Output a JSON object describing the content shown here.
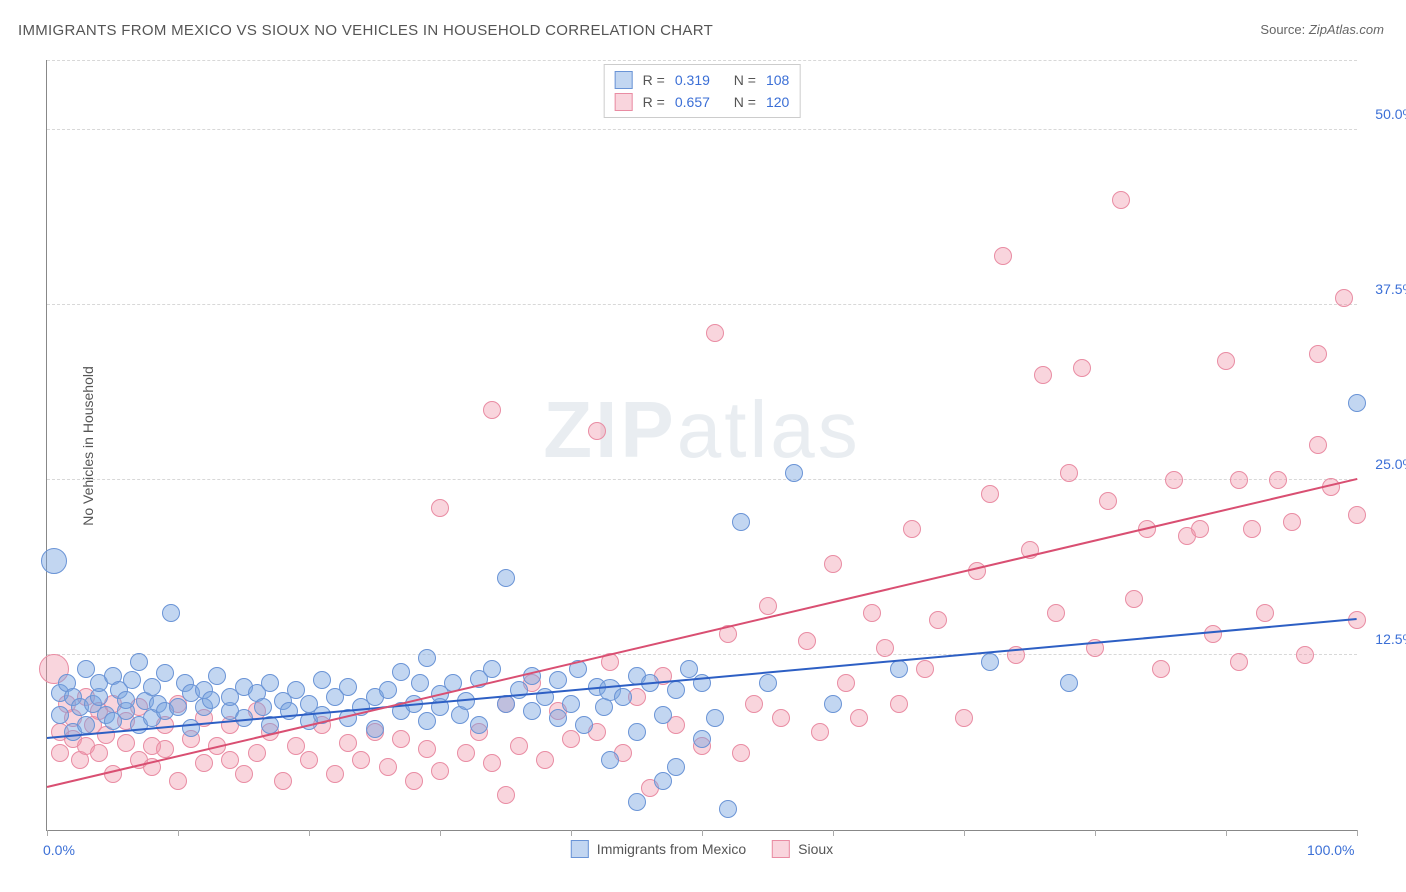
{
  "title": "IMMIGRANTS FROM MEXICO VS SIOUX NO VEHICLES IN HOUSEHOLD CORRELATION CHART",
  "source_label": "Source:",
  "source_value": "ZipAtlas.com",
  "y_axis_label": "No Vehicles in Household",
  "watermark": {
    "bold": "ZIP",
    "light": "atlas"
  },
  "chart": {
    "type": "scatter",
    "xlim": [
      0,
      100
    ],
    "ylim": [
      0,
      55
    ],
    "x_ticks_count": 11,
    "x_tick_labels": {
      "first": "0.0%",
      "last": "100.0%"
    },
    "y_gridlines": [
      12.5,
      25.0,
      37.5,
      50.0
    ],
    "y_tick_labels": [
      "12.5%",
      "25.0%",
      "37.5%",
      "50.0%"
    ],
    "background_color": "#ffffff",
    "grid_color": "#d8d8d8",
    "axis_color": "#888888",
    "tick_label_color": "#3b6fd6",
    "point_radius": 8,
    "point_border_width": 1,
    "series": [
      {
        "name": "Immigrants from Mexico",
        "fill": "rgba(120,165,225,0.45)",
        "stroke": "#6a94d6",
        "trend_color": "#2d5fc4",
        "trend_width": 2,
        "trend": {
          "x1": 0,
          "y1": 6.5,
          "x2": 100,
          "y2": 15.0
        },
        "R_label": "R =",
        "R": "0.319",
        "N_label": "N =",
        "N": "108",
        "points": [
          [
            0.5,
            19.2,
            12
          ],
          [
            1,
            9.8
          ],
          [
            1,
            8.2
          ],
          [
            1.5,
            10.5
          ],
          [
            2,
            7.0
          ],
          [
            2,
            9.5
          ],
          [
            2.5,
            8.8
          ],
          [
            3,
            11.5
          ],
          [
            3,
            7.5
          ],
          [
            3.5,
            9.0
          ],
          [
            4,
            9.5
          ],
          [
            4,
            10.5
          ],
          [
            4.5,
            8.2
          ],
          [
            5,
            11.0
          ],
          [
            5,
            7.8
          ],
          [
            5.5,
            10.0
          ],
          [
            6,
            8.5
          ],
          [
            6,
            9.3
          ],
          [
            6.5,
            10.7
          ],
          [
            7,
            7.5
          ],
          [
            7,
            12.0
          ],
          [
            7.5,
            9.2
          ],
          [
            8,
            8.0
          ],
          [
            8,
            10.2
          ],
          [
            8.5,
            9.0
          ],
          [
            9,
            11.2
          ],
          [
            9,
            8.5
          ],
          [
            9.5,
            15.5
          ],
          [
            10,
            8.8
          ],
          [
            10.5,
            10.5
          ],
          [
            11,
            7.3
          ],
          [
            11,
            9.8
          ],
          [
            12,
            8.8
          ],
          [
            12,
            10.0
          ],
          [
            12.5,
            9.3
          ],
          [
            13,
            11.0
          ],
          [
            14,
            8.5
          ],
          [
            14,
            9.5
          ],
          [
            15,
            10.2
          ],
          [
            15,
            8.0
          ],
          [
            16,
            9.8
          ],
          [
            16.5,
            8.8
          ],
          [
            17,
            10.5
          ],
          [
            17,
            7.5
          ],
          [
            18,
            9.2
          ],
          [
            18.5,
            8.5
          ],
          [
            19,
            10.0
          ],
          [
            20,
            9.0
          ],
          [
            20,
            7.8
          ],
          [
            21,
            10.7
          ],
          [
            21,
            8.2
          ],
          [
            22,
            9.5
          ],
          [
            23,
            8.0
          ],
          [
            23,
            10.2
          ],
          [
            24,
            8.8
          ],
          [
            25,
            9.5
          ],
          [
            25,
            7.2
          ],
          [
            26,
            10.0
          ],
          [
            27,
            8.5
          ],
          [
            27,
            11.3
          ],
          [
            28,
            9.0
          ],
          [
            28.5,
            10.5
          ],
          [
            29,
            7.8
          ],
          [
            29,
            12.3
          ],
          [
            30,
            8.8
          ],
          [
            30,
            9.7
          ],
          [
            31,
            10.5
          ],
          [
            31.5,
            8.2
          ],
          [
            32,
            9.2
          ],
          [
            33,
            10.8
          ],
          [
            33,
            7.5
          ],
          [
            34,
            11.5
          ],
          [
            35,
            9.0
          ],
          [
            35,
            18.0
          ],
          [
            36,
            10.0
          ],
          [
            37,
            8.5
          ],
          [
            37,
            11.0
          ],
          [
            38,
            9.5
          ],
          [
            39,
            8.0
          ],
          [
            39,
            10.7
          ],
          [
            40,
            9.0
          ],
          [
            40.5,
            11.5
          ],
          [
            41,
            7.5
          ],
          [
            42,
            10.2
          ],
          [
            42.5,
            8.8
          ],
          [
            43,
            10.0,
            10
          ],
          [
            43,
            5.0
          ],
          [
            44,
            9.5
          ],
          [
            45,
            11.0
          ],
          [
            45,
            7.0
          ],
          [
            45,
            2.0
          ],
          [
            46,
            10.5
          ],
          [
            47,
            3.5
          ],
          [
            47,
            8.2
          ],
          [
            48,
            10.0
          ],
          [
            48,
            4.5
          ],
          [
            49,
            11.5
          ],
          [
            50,
            6.5
          ],
          [
            50,
            10.5
          ],
          [
            51,
            8.0
          ],
          [
            52,
            1.5
          ],
          [
            53,
            22.0
          ],
          [
            55,
            10.5
          ],
          [
            57,
            25.5
          ],
          [
            60,
            9.0
          ],
          [
            65,
            11.5
          ],
          [
            72,
            12.0
          ],
          [
            78,
            10.5
          ],
          [
            100,
            30.5
          ]
        ]
      },
      {
        "name": "Sioux",
        "fill": "rgba(240,150,170,0.40)",
        "stroke": "#e98ca3",
        "trend_color": "#d94f72",
        "trend_width": 2,
        "trend": {
          "x1": 0,
          "y1": 3.0,
          "x2": 100,
          "y2": 25.0
        },
        "R_label": "R =",
        "R": "0.657",
        "N_label": "N =",
        "N": "120",
        "points": [
          [
            0.5,
            11.5,
            14
          ],
          [
            1,
            7.0
          ],
          [
            1,
            5.5
          ],
          [
            1.5,
            9.0
          ],
          [
            2,
            6.5
          ],
          [
            2,
            8.0
          ],
          [
            2.5,
            5.0
          ],
          [
            3,
            9.5
          ],
          [
            3,
            6.0
          ],
          [
            3.5,
            7.5
          ],
          [
            4,
            5.5
          ],
          [
            4,
            8.5
          ],
          [
            4.5,
            6.8
          ],
          [
            5,
            4.0
          ],
          [
            5,
            9.0
          ],
          [
            6,
            6.2
          ],
          [
            6,
            7.8
          ],
          [
            7,
            5.0
          ],
          [
            7,
            8.8
          ],
          [
            8,
            6.0
          ],
          [
            8,
            4.5
          ],
          [
            9,
            7.5
          ],
          [
            9,
            5.8
          ],
          [
            10,
            9.0
          ],
          [
            10,
            3.5
          ],
          [
            11,
            6.5
          ],
          [
            12,
            8.0
          ],
          [
            12,
            4.8
          ],
          [
            13,
            6.0
          ],
          [
            14,
            5.0
          ],
          [
            14,
            7.5
          ],
          [
            15,
            4.0
          ],
          [
            16,
            8.5
          ],
          [
            16,
            5.5
          ],
          [
            17,
            7.0
          ],
          [
            18,
            3.5
          ],
          [
            19,
            6.0
          ],
          [
            20,
            5.0
          ],
          [
            21,
            7.5
          ],
          [
            22,
            4.0
          ],
          [
            23,
            6.2
          ],
          [
            24,
            5.0
          ],
          [
            25,
            7.0
          ],
          [
            26,
            4.5
          ],
          [
            27,
            6.5
          ],
          [
            28,
            3.5
          ],
          [
            29,
            5.8
          ],
          [
            30,
            4.2
          ],
          [
            30,
            23.0
          ],
          [
            32,
            5.5
          ],
          [
            33,
            7.0
          ],
          [
            34,
            4.8
          ],
          [
            34,
            30.0
          ],
          [
            35,
            9.0
          ],
          [
            35,
            2.5
          ],
          [
            36,
            6.0
          ],
          [
            37,
            10.5
          ],
          [
            38,
            5.0
          ],
          [
            39,
            8.5
          ],
          [
            40,
            6.5
          ],
          [
            42,
            28.5
          ],
          [
            42,
            7.0
          ],
          [
            43,
            12.0
          ],
          [
            44,
            5.5
          ],
          [
            45,
            9.5
          ],
          [
            46,
            3.0
          ],
          [
            47,
            11.0
          ],
          [
            48,
            7.5
          ],
          [
            50,
            6.0
          ],
          [
            51,
            35.5
          ],
          [
            52,
            14.0
          ],
          [
            53,
            5.5
          ],
          [
            54,
            9.0
          ],
          [
            55,
            16.0
          ],
          [
            56,
            8.0
          ],
          [
            58,
            13.5
          ],
          [
            59,
            7.0
          ],
          [
            60,
            19.0
          ],
          [
            61,
            10.5
          ],
          [
            62,
            8.0
          ],
          [
            63,
            15.5
          ],
          [
            64,
            13.0
          ],
          [
            65,
            9.0
          ],
          [
            66,
            21.5
          ],
          [
            67,
            11.5
          ],
          [
            68,
            15.0
          ],
          [
            70,
            8.0
          ],
          [
            71,
            18.5
          ],
          [
            72,
            24.0
          ],
          [
            73,
            41.0
          ],
          [
            74,
            12.5
          ],
          [
            75,
            20.0
          ],
          [
            76,
            32.5
          ],
          [
            77,
            15.5
          ],
          [
            78,
            25.5
          ],
          [
            79,
            33.0
          ],
          [
            80,
            13.0
          ],
          [
            81,
            23.5
          ],
          [
            82,
            45.0
          ],
          [
            83,
            16.5
          ],
          [
            84,
            21.5
          ],
          [
            85,
            11.5
          ],
          [
            86,
            25.0
          ],
          [
            87,
            21.0
          ],
          [
            88,
            21.5
          ],
          [
            89,
            14.0
          ],
          [
            90,
            33.5
          ],
          [
            91,
            12.0
          ],
          [
            91,
            25.0
          ],
          [
            92,
            21.5
          ],
          [
            93,
            15.5
          ],
          [
            94,
            25.0
          ],
          [
            95,
            22.0
          ],
          [
            96,
            12.5
          ],
          [
            97,
            27.5
          ],
          [
            98,
            24.5
          ],
          [
            99,
            38.0
          ],
          [
            100,
            22.5
          ],
          [
            100,
            15.0
          ],
          [
            97,
            34.0
          ]
        ]
      }
    ]
  }
}
